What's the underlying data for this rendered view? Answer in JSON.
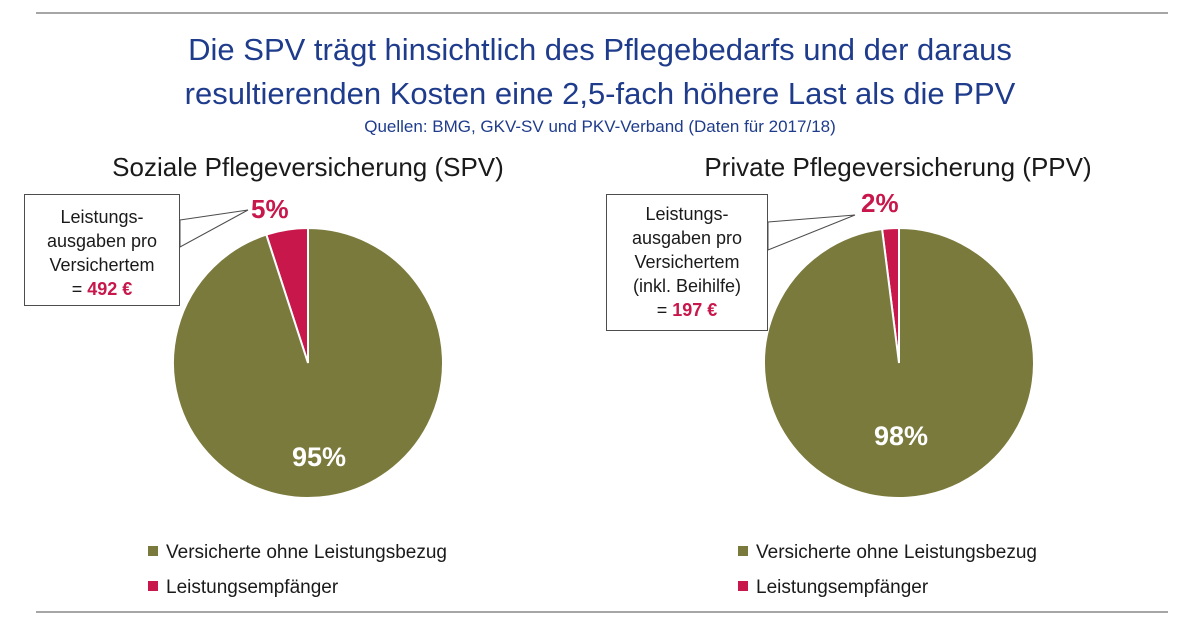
{
  "title": {
    "line1": "Die SPV trägt hinsichtlich des Pflegebedarfs und der daraus",
    "line2": "resultierenden Kosten eine 2,5-fach höhere Last als die PPV"
  },
  "source": "Quellen: BMG, GKV-SV und PKV-Verband (Daten für 2017/18)",
  "colors": {
    "olive": "#7a7a3d",
    "crimson": "#c8174b",
    "title_blue": "#1f3c8c"
  },
  "chart_data": [
    {
      "type": "pie",
      "title": "Soziale Pflegeversicherung (SPV)",
      "categories": [
        "Versicherte ohne Leistungsbezug",
        "Leistungsempfänger"
      ],
      "values": [
        95,
        5
      ],
      "labels": [
        "95%",
        "5%"
      ],
      "colors": [
        "#7a7a3d",
        "#c8174b"
      ],
      "callout": {
        "lines": [
          "Leistungs-",
          "ausgaben pro",
          "Versichertem"
        ],
        "prefix": "= ",
        "amount": "492 €"
      },
      "legend": [
        "Versicherte ohne Leistungsbezug",
        "Leistungsempfänger"
      ]
    },
    {
      "type": "pie",
      "title": "Private Pflegeversicherung (PPV)",
      "categories": [
        "Versicherte ohne Leistungsbezug",
        "Leistungsempfänger"
      ],
      "values": [
        98,
        2
      ],
      "labels": [
        "98%",
        "2%"
      ],
      "colors": [
        "#7a7a3d",
        "#c8174b"
      ],
      "callout": {
        "lines": [
          "Leistungs-",
          "ausgaben pro",
          "Versichertem",
          "(inkl. Beihilfe)"
        ],
        "prefix": "= ",
        "amount": "197 €"
      },
      "legend": [
        "Versicherte ohne Leistungsbezug",
        "Leistungsempfänger"
      ]
    }
  ]
}
